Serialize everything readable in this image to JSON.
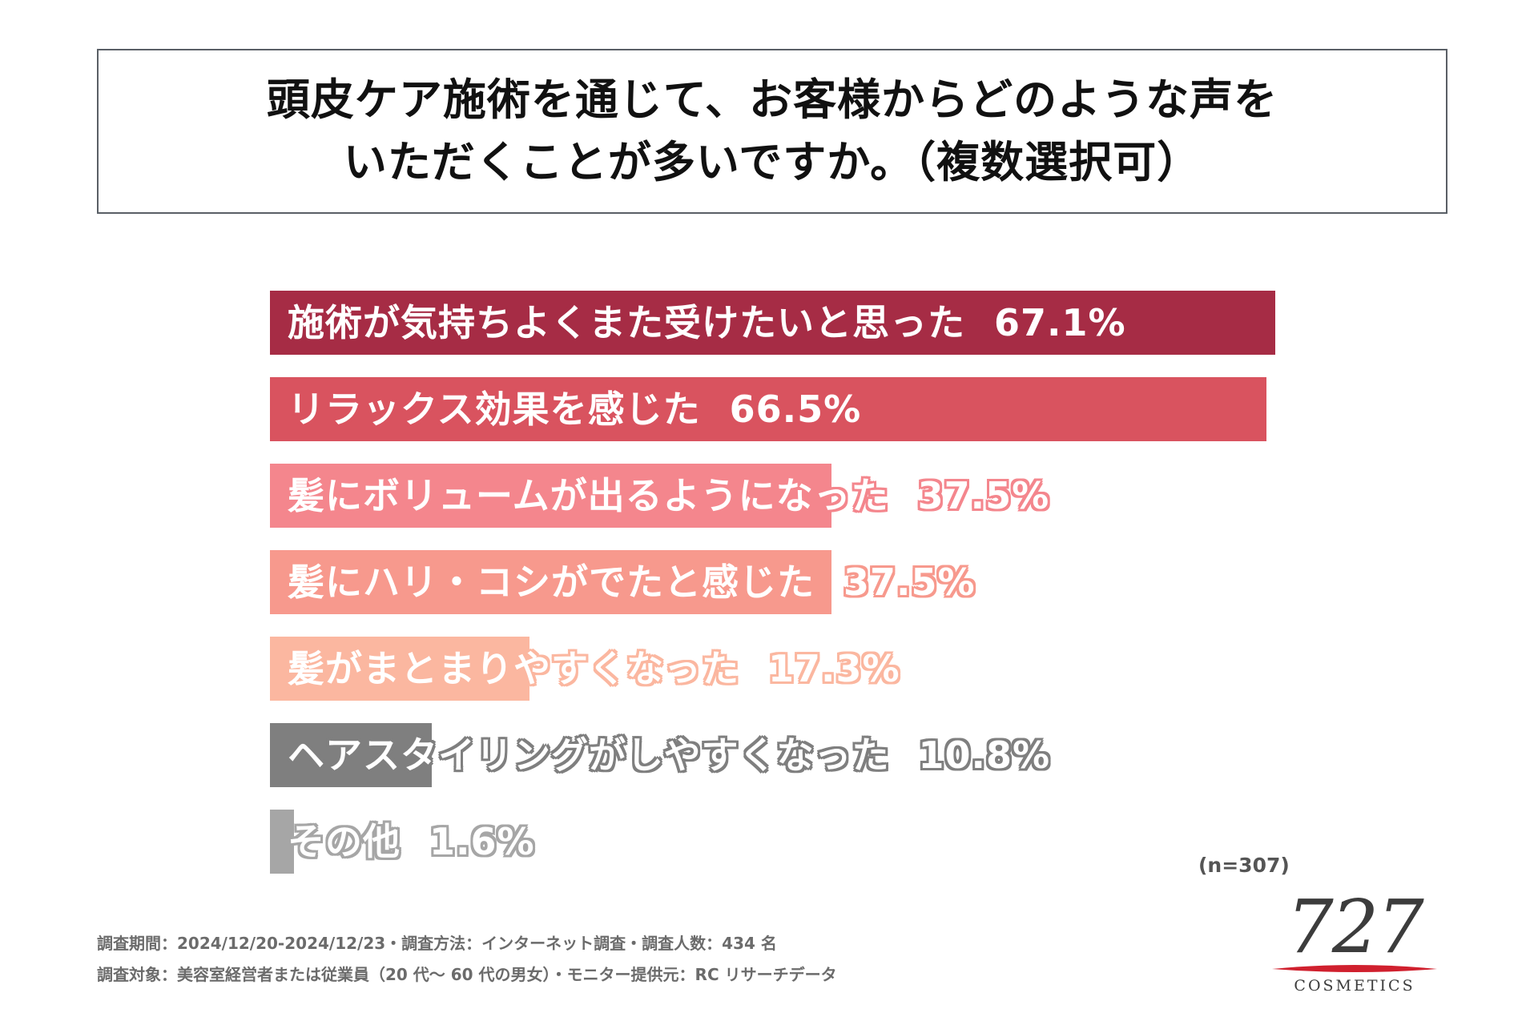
{
  "title": {
    "line1": "頭皮ケア施術を通じて、お客様からどのような声を",
    "line2": "いただくことが多いですか。（複数選択可）"
  },
  "chart_data": {
    "type": "bar",
    "orientation": "horizontal",
    "categories": [
      "施術が気持ちよくまた受けたいと思った",
      "リラックス効果を感じた",
      "髪にボリュームが出るようになった",
      "髪にハリ・コシがでたと感じた",
      "髪がまとまりやすくなった",
      "ヘアスタイリングがしやすくなった",
      "その他"
    ],
    "values": [
      67.1,
      66.5,
      37.5,
      37.5,
      17.3,
      10.8,
      1.6
    ],
    "value_labels": [
      "67.1%",
      "66.5%",
      "37.5%",
      "37.5%",
      "17.3%",
      "10.8%",
      "1.6%"
    ],
    "colors": [
      "#a62c45",
      "#d9535f",
      "#f4868d",
      "#f7998d",
      "#fbb7a0",
      "#7f7f7f",
      "#a6a6a6"
    ],
    "xlim": [
      0,
      67.1
    ]
  },
  "n_label": "(n=307)",
  "footnotes": {
    "line1": "調査期間：2024/12/20-2024/12/23・調査方法：インターネット調査・調査人数：434 名",
    "line2": "調査対象：美容室経営者または従業員（20 代～ 60 代の男女）・モニター提供元：RC リサーチデータ"
  },
  "logo": {
    "number": "727",
    "text": "COSMETICS",
    "accent_color": "#d0202e"
  }
}
